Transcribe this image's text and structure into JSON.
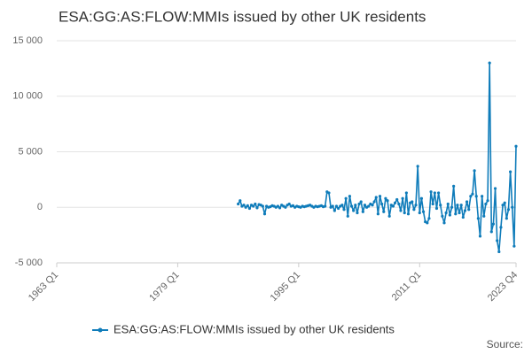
{
  "chart_data": {
    "type": "line",
    "title": "ESA:GG:AS:FLOW:MMIs issued by other UK residents",
    "source": "Source:",
    "categories": [
      "1963 Q1",
      null,
      null,
      null,
      null,
      null,
      null,
      null,
      null,
      null,
      null,
      null,
      null,
      null,
      null,
      null,
      null,
      null,
      null,
      null,
      null,
      null,
      null,
      null,
      null,
      null,
      null,
      null,
      null,
      null,
      null,
      null,
      null,
      null,
      null,
      null,
      null,
      null,
      null,
      null,
      null,
      null,
      null,
      null,
      null,
      null,
      null,
      null,
      null,
      null,
      null,
      null,
      null,
      null,
      null,
      null,
      null,
      null,
      null,
      null,
      null,
      null,
      null,
      null,
      "1979 Q1",
      null,
      null,
      null,
      null,
      null,
      null,
      null,
      null,
      null,
      null,
      null,
      null,
      null,
      null,
      null,
      null,
      null,
      null,
      null,
      null,
      null,
      null,
      null,
      null,
      null,
      null,
      null,
      null,
      null,
      null,
      null,
      null,
      null,
      null,
      null,
      null,
      null,
      null,
      null,
      null,
      null,
      null,
      null,
      null,
      null,
      null,
      null,
      null,
      null,
      null,
      null,
      null,
      null,
      null,
      null,
      null,
      null,
      null,
      null,
      null,
      null,
      null,
      null,
      "1995 Q1",
      null,
      null,
      null,
      null,
      null,
      null,
      null,
      null,
      null,
      null,
      null,
      null,
      null,
      null,
      null,
      null,
      null,
      null,
      null,
      null,
      null,
      null,
      null,
      null,
      null,
      null,
      null,
      null,
      null,
      null,
      null,
      null,
      null,
      null,
      null,
      null,
      null,
      null,
      null,
      null,
      null,
      null,
      null,
      null,
      null,
      null,
      null,
      null,
      null,
      null,
      null,
      null,
      null,
      null,
      null,
      null,
      null,
      null,
      null,
      null,
      null,
      null,
      null,
      "2011 Q1",
      null,
      null,
      null,
      null,
      null,
      null,
      null,
      null,
      null,
      null,
      null,
      null,
      null,
      null,
      null,
      null,
      null,
      null,
      null,
      null,
      null,
      null,
      null,
      null,
      null,
      null,
      null,
      null,
      null,
      null,
      null,
      null,
      null,
      null,
      null,
      null,
      null,
      null,
      null,
      null,
      null,
      null,
      null,
      null,
      null,
      null,
      null,
      null,
      null,
      null,
      "2023 Q4"
    ],
    "series": [
      {
        "name": "ESA:GG:AS:FLOW:MMIs issued by other UK residents",
        "color": "#0f7cba",
        "values": [
          null,
          null,
          null,
          null,
          null,
          null,
          null,
          null,
          null,
          null,
          null,
          null,
          null,
          null,
          null,
          null,
          null,
          null,
          null,
          null,
          null,
          null,
          null,
          null,
          null,
          null,
          null,
          null,
          null,
          null,
          null,
          null,
          null,
          null,
          null,
          null,
          null,
          null,
          null,
          null,
          null,
          null,
          null,
          null,
          null,
          null,
          null,
          null,
          null,
          null,
          null,
          null,
          null,
          null,
          null,
          null,
          null,
          null,
          null,
          null,
          null,
          null,
          null,
          null,
          null,
          null,
          null,
          null,
          null,
          null,
          null,
          null,
          null,
          null,
          null,
          null,
          null,
          null,
          null,
          null,
          null,
          null,
          null,
          null,
          null,
          null,
          null,
          null,
          null,
          null,
          null,
          null,
          null,
          null,
          null,
          null,
          300,
          600,
          100,
          200,
          0,
          150,
          -100,
          200,
          100,
          300,
          -50,
          250,
          200,
          100,
          -600,
          100,
          0,
          50,
          150,
          100,
          0,
          100,
          -50,
          200,
          100,
          0,
          200,
          300,
          100,
          150,
          0,
          100,
          50,
          0,
          100,
          50,
          100,
          150,
          200,
          100,
          0,
          100,
          50,
          100,
          150,
          50,
          100,
          1400,
          1300,
          0,
          100,
          -300,
          100,
          -100,
          100,
          200,
          -200,
          800,
          -800,
          1000,
          100,
          -300,
          200,
          -500,
          300,
          500,
          -400,
          200,
          0,
          100,
          300,
          200,
          500,
          900,
          -600,
          1000,
          300,
          -400,
          800,
          600,
          -800,
          200,
          100,
          400,
          700,
          300,
          -300,
          800,
          -500,
          1300,
          -600,
          400,
          500,
          -200,
          200,
          3700,
          -500,
          800,
          -400,
          -1300,
          -1400,
          -1000,
          1400,
          300,
          1300,
          -100,
          1300,
          200,
          -800,
          -1400,
          -500,
          300,
          -700,
          0,
          1900,
          -600,
          200,
          -500,
          200,
          -900,
          -300,
          500,
          -200,
          1000,
          1200,
          3300,
          1000,
          -1000,
          -2600,
          1000,
          -800,
          300,
          600,
          13000,
          -2200,
          -1500,
          1700,
          -3000,
          -4000,
          -1800,
          200,
          400,
          -1000,
          -200,
          3200,
          0,
          -3500,
          5500
        ]
      }
    ],
    "ylim": [
      -5000,
      15000
    ],
    "yticks": [
      {
        "value": -5000,
        "label": "-5 000"
      },
      0,
      {
        "value": 5000,
        "label": "5 000"
      },
      {
        "value": 10000,
        "label": "10 000"
      },
      {
        "value": 15000,
        "label": "15 000"
      }
    ],
    "grid": true,
    "legend": "bottom"
  }
}
